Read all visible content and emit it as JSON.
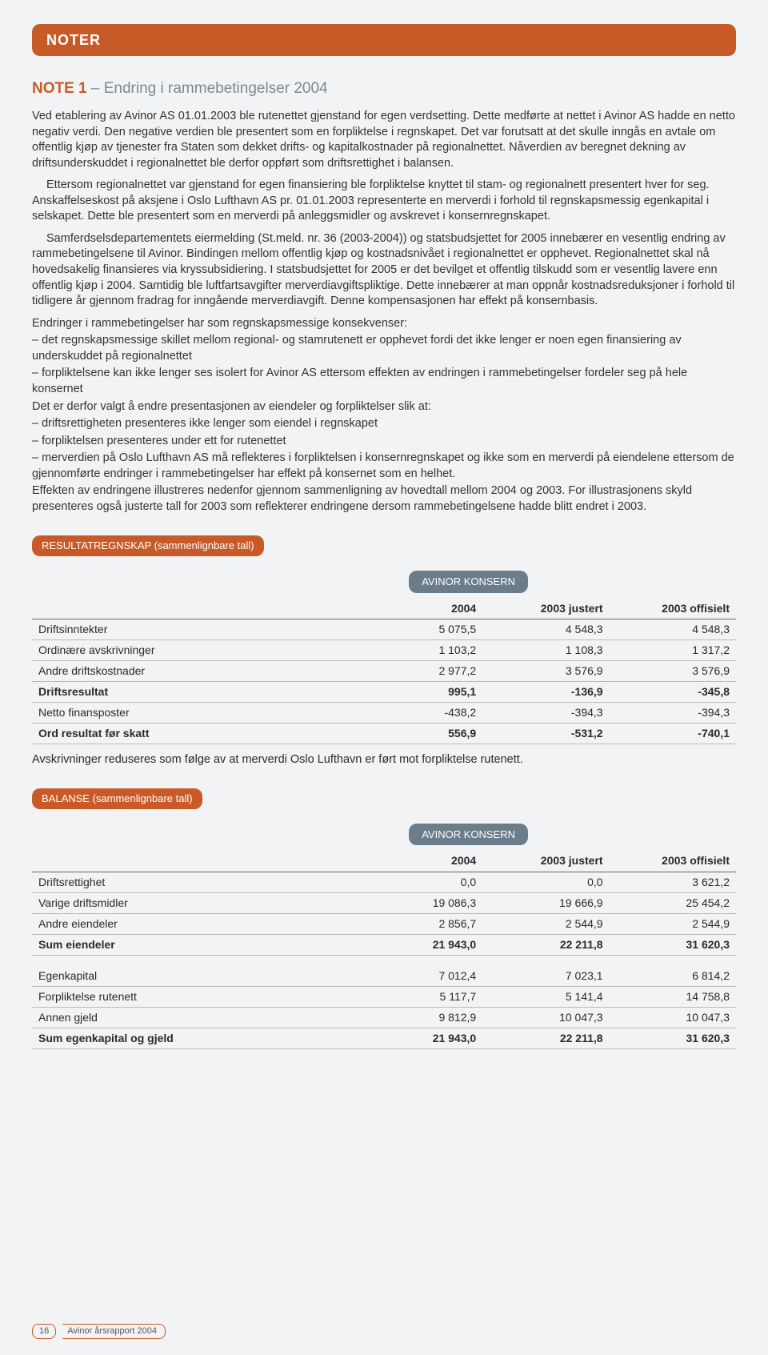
{
  "colors": {
    "accent": "#c85a28",
    "konsern": "#6b7d8a",
    "page_bg": "#f2f3f4",
    "text": "#2a2a2a",
    "subtitle": "#7a8a92"
  },
  "header_tab": "NOTER",
  "note": {
    "number": "NOTE 1",
    "separator": " – ",
    "title": "Endring i rammebetingelser 2004"
  },
  "paragraphs": {
    "p1": "Ved etablering av Avinor AS 01.01.2003 ble rutenettet gjenstand for egen verdsetting. Dette medførte at nettet i Avinor AS hadde en netto negativ verdi. Den negative verdien ble presentert som en forpliktelse i regnskapet. Det var forutsatt at det skulle inngås en avtale om offentlig kjøp av tjenester fra Staten som dekket drifts- og kapitalkostnader på regionalnettet. Nåverdien av beregnet dekning av driftsunderskuddet i regionalnettet ble derfor oppført som driftsrettighet i balansen.",
    "p2": "Ettersom regionalnettet var gjenstand for egen finansiering ble forpliktelse knyttet til stam- og regionalnett presentert hver for seg. Anskaffelseskost på aksjene i Oslo Lufthavn AS pr. 01.01.2003 representerte en merverdi i forhold til regnskapsmessig egenkapital i selskapet. Dette ble presentert som en merverdi på anleggsmidler og avskrevet i konsernregnskapet.",
    "p3": "Samferdselsdepartementets eiermelding (St.meld. nr. 36 (2003-2004)) og statsbudsjettet for 2005 innebærer en vesentlig endring av rammebetingelsene til Avinor. Bindingen mellom offentlig kjøp og kostnadsnivået i regionalnettet er opphevet. Regionalnettet skal nå hovedsakelig finansieres via kryssubsidiering. I statsbudsjettet for 2005 er det bevilget et offentlig tilskudd som er vesentlig lavere enn offentlig kjøp i 2004. Samtidig ble luftfartsavgifter merverdiavgiftspliktige. Dette innebærer at man oppnår kostnadsreduksjoner i forhold til tidligere år gjennom fradrag for inngående merverdiavgift. Denne kompensasjonen har effekt på konsernbasis.",
    "p4": "Endringer i rammebetingelser har som regnskapsmessige konsekvenser:",
    "l1": "– det regnskapsmessige skillet mellom regional- og stamrutenett er opphevet fordi det ikke lenger er noen egen finansiering av underskuddet på regionalnettet",
    "l2": "– forpliktelsene kan ikke lenger ses isolert for Avinor AS ettersom effekten av endringen i rammebetingelser fordeler seg på hele konsernet",
    "p5": "Det er derfor valgt å endre presentasjonen av eiendeler og forpliktelser slik at:",
    "l3": "– driftsrettigheten presenteres ikke lenger som eiendel i regnskapet",
    "l4": "– forpliktelsen presenteres under ett for rutenettet",
    "l5": "– merverdien på Oslo Lufthavn AS må reflekteres i forpliktelsen i konsernregnskapet og ikke som en merverdi på eiendelene ettersom de gjennomførte endringer i rammebetingelser har effekt på konsernet som en helhet.",
    "p6": "Effekten av endringene illustreres nedenfor gjennom sammenligning av hovedtall mellom 2004 og 2003. For illustrasjonens skyld presenteres også justerte tall for 2003 som reflekterer endringene dersom rammebetingelsene hadde blitt endret i 2003."
  },
  "table1": {
    "section_label": "RESULTATREGNSKAP (sammenlignbare tall)",
    "konsern_label": "AVINOR KONSERN",
    "columns": [
      "",
      "2004",
      "2003 justert",
      "2003 offisielt"
    ],
    "col_widths": [
      "46%",
      "18%",
      "18%",
      "18%"
    ],
    "rows": [
      {
        "label": "Driftsinntekter",
        "v": [
          "5 075,5",
          "4 548,3",
          "4 548,3"
        ],
        "bold": false
      },
      {
        "label": "Ordinære avskrivninger",
        "v": [
          "1 103,2",
          "1 108,3",
          "1 317,2"
        ],
        "bold": false
      },
      {
        "label": "Andre driftskostnader",
        "v": [
          "2 977,2",
          "3 576,9",
          "3 576,9"
        ],
        "bold": false
      },
      {
        "label": "Driftsresultat",
        "v": [
          "995,1",
          "-136,9",
          "-345,8"
        ],
        "bold": true
      },
      {
        "label": "Netto finansposter",
        "v": [
          "-438,2",
          "-394,3",
          "-394,3"
        ],
        "bold": false
      },
      {
        "label": "Ord resultat før skatt",
        "v": [
          "556,9",
          "-531,2",
          "-740,1"
        ],
        "bold": true
      }
    ],
    "note": "Avskrivninger reduseres som følge av at merverdi Oslo Lufthavn er ført mot forpliktelse rutenett."
  },
  "table2": {
    "section_label": "BALANSE (sammenlignbare tall)",
    "konsern_label": "AVINOR KONSERN",
    "columns": [
      "",
      "2004",
      "2003 justert",
      "2003 offisielt"
    ],
    "col_widths": [
      "46%",
      "18%",
      "18%",
      "18%"
    ],
    "rows_a": [
      {
        "label": "Driftsrettighet",
        "v": [
          "0,0",
          "0,0",
          "3 621,2"
        ],
        "bold": false
      },
      {
        "label": "Varige driftsmidler",
        "v": [
          "19 086,3",
          "19 666,9",
          "25 454,2"
        ],
        "bold": false
      },
      {
        "label": "Andre eiendeler",
        "v": [
          "2 856,7",
          "2 544,9",
          "2 544,9"
        ],
        "bold": false
      },
      {
        "label": "Sum eiendeler",
        "v": [
          "21 943,0",
          "22 211,8",
          "31 620,3"
        ],
        "bold": true
      }
    ],
    "rows_b": [
      {
        "label": "Egenkapital",
        "v": [
          "7 012,4",
          "7 023,1",
          "6 814,2"
        ],
        "bold": false
      },
      {
        "label": "Forpliktelse rutenett",
        "v": [
          "5 117,7",
          "5 141,4",
          "14 758,8"
        ],
        "bold": false
      },
      {
        "label": "Annen gjeld",
        "v": [
          "9 812,9",
          "10 047,3",
          "10 047,3"
        ],
        "bold": false
      },
      {
        "label": "Sum egenkapital og gjeld",
        "v": [
          "21 943,0",
          "22 211,8",
          "31 620,3"
        ],
        "bold": true
      }
    ]
  },
  "footer": {
    "page": "16",
    "label": "Avinor årsrapport 2004"
  }
}
